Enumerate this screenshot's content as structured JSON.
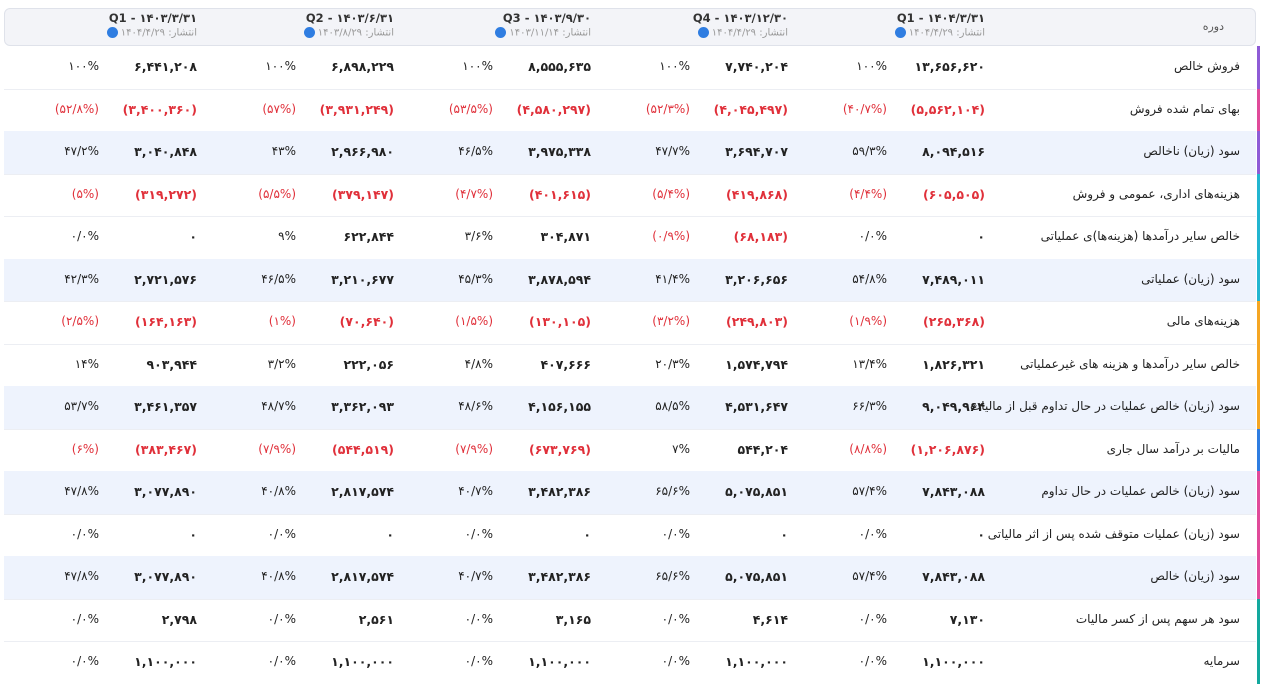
{
  "header": {
    "title": "دوره",
    "periods": [
      {
        "label": "Q1 - ۱۴۰۴/۳/۳۱",
        "published": "انتشار: ۱۴۰۴/۴/۲۹"
      },
      {
        "label": "Q4 - ۱۴۰۳/۱۲/۳۰",
        "published": "انتشار: ۱۴۰۴/۴/۲۹"
      },
      {
        "label": "Q3 - ۱۴۰۳/۹/۳۰",
        "published": "انتشار: ۱۴۰۳/۱۱/۱۴"
      },
      {
        "label": "Q2 - ۱۴۰۳/۶/۳۱",
        "published": "انتشار: ۱۴۰۳/۸/۲۹"
      },
      {
        "label": "Q1 - ۱۴۰۳/۳/۳۱",
        "published": "انتشار: ۱۴۰۴/۴/۲۹"
      }
    ]
  },
  "rows": [
    {
      "label": "فروش خالص",
      "cells": [
        {
          "value": "۱۳,۶۵۶,۶۲۰",
          "percent": "۱۰۰%"
        },
        {
          "value": "۷,۷۴۰,۲۰۴",
          "percent": "۱۰۰%"
        },
        {
          "value": "۸,۵۵۵,۶۳۵",
          "percent": "۱۰۰%"
        },
        {
          "value": "۶,۸۹۸,۲۲۹",
          "percent": "۱۰۰%"
        },
        {
          "value": "۶,۴۴۱,۲۰۸",
          "percent": "۱۰۰%"
        }
      ]
    },
    {
      "label": "بهای تمام شده فروش",
      "cells": [
        {
          "value": "(۵,۵۶۲,۱۰۴)",
          "percent": "(۴۰/۷%)"
        },
        {
          "value": "(۴,۰۴۵,۴۹۷)",
          "percent": "(۵۲/۳%)"
        },
        {
          "value": "(۴,۵۸۰,۲۹۷)",
          "percent": "(۵۳/۵%)"
        },
        {
          "value": "(۳,۹۳۱,۲۴۹)",
          "percent": "(۵۷%)"
        },
        {
          "value": "(۳,۴۰۰,۳۶۰)",
          "percent": "(۵۲/۸%)"
        }
      ]
    },
    {
      "label": "سود (زیان) ناخالص",
      "cells": [
        {
          "value": "۸,۰۹۴,۵۱۶",
          "percent": "۵۹/۳%"
        },
        {
          "value": "۳,۶۹۴,۷۰۷",
          "percent": "۴۷/۷%"
        },
        {
          "value": "۳,۹۷۵,۳۳۸",
          "percent": "۴۶/۵%"
        },
        {
          "value": "۲,۹۶۶,۹۸۰",
          "percent": "۴۳%"
        },
        {
          "value": "۳,۰۴۰,۸۴۸",
          "percent": "۴۷/۲%"
        }
      ]
    },
    {
      "label": "هزینه‌های اداری، عمومی و فروش",
      "cells": [
        {
          "value": "(۶۰۵,۵۰۵)",
          "percent": "(۴/۴%)"
        },
        {
          "value": "(۴۱۹,۸۶۸)",
          "percent": "(۵/۴%)"
        },
        {
          "value": "(۴۰۱,۶۱۵)",
          "percent": "(۴/۷%)"
        },
        {
          "value": "(۳۷۹,۱۴۷)",
          "percent": "(۵/۵%)"
        },
        {
          "value": "(۳۱۹,۲۷۲)",
          "percent": "(۵%)"
        }
      ]
    },
    {
      "label": "خالص سایر درآمدها (هزینه‌ها)ی عملیاتی",
      "cells": [
        {
          "value": "۰",
          "percent": "۰/۰%"
        },
        {
          "value": "(۶۸,۱۸۳)",
          "percent": "(۰/۹%)"
        },
        {
          "value": "۳۰۴,۸۷۱",
          "percent": "۳/۶%"
        },
        {
          "value": "۶۲۲,۸۴۴",
          "percent": "۹%"
        },
        {
          "value": "۰",
          "percent": "۰/۰%"
        }
      ]
    },
    {
      "label": "سود (زیان) عملیاتی",
      "cells": [
        {
          "value": "۷,۴۸۹,۰۱۱",
          "percent": "۵۴/۸%"
        },
        {
          "value": "۳,۲۰۶,۶۵۶",
          "percent": "۴۱/۴%"
        },
        {
          "value": "۳,۸۷۸,۵۹۴",
          "percent": "۴۵/۳%"
        },
        {
          "value": "۳,۲۱۰,۶۷۷",
          "percent": "۴۶/۵%"
        },
        {
          "value": "۲,۷۲۱,۵۷۶",
          "percent": "۴۲/۳%"
        }
      ]
    },
    {
      "label": "هزینه‌های مالی",
      "cells": [
        {
          "value": "(۲۶۵,۳۶۸)",
          "percent": "(۱/۹%)"
        },
        {
          "value": "(۲۴۹,۸۰۳)",
          "percent": "(۳/۲%)"
        },
        {
          "value": "(۱۳۰,۱۰۵)",
          "percent": "(۱/۵%)"
        },
        {
          "value": "(۷۰,۶۴۰)",
          "percent": "(۱%)"
        },
        {
          "value": "(۱۶۴,۱۶۳)",
          "percent": "(۲/۵%)"
        }
      ]
    },
    {
      "label": "خالص سایر درآمدها و هزینه های غیرعملیاتی",
      "cells": [
        {
          "value": "۱,۸۲۶,۳۲۱",
          "percent": "۱۳/۴%"
        },
        {
          "value": "۱,۵۷۴,۷۹۴",
          "percent": "۲۰/۳%"
        },
        {
          "value": "۴۰۷,۶۶۶",
          "percent": "۴/۸%"
        },
        {
          "value": "۲۲۲,۰۵۶",
          "percent": "۳/۲%"
        },
        {
          "value": "۹۰۳,۹۴۴",
          "percent": "۱۴%"
        }
      ]
    },
    {
      "label": "سود (زیان) خالص عملیات در حال تداوم قبل از مالیات",
      "cells": [
        {
          "value": "۹,۰۴۹,۹۶۴",
          "percent": "۶۶/۳%"
        },
        {
          "value": "۴,۵۳۱,۶۴۷",
          "percent": "۵۸/۵%"
        },
        {
          "value": "۴,۱۵۶,۱۵۵",
          "percent": "۴۸/۶%"
        },
        {
          "value": "۳,۳۶۲,۰۹۳",
          "percent": "۴۸/۷%"
        },
        {
          "value": "۳,۴۶۱,۳۵۷",
          "percent": "۵۳/۷%"
        }
      ]
    },
    {
      "label": "مالیات بر درآمد سال جاری",
      "cells": [
        {
          "value": "(۱,۲۰۶,۸۷۶)",
          "percent": "(۸/۸%)"
        },
        {
          "value": "۵۴۴,۲۰۴",
          "percent": "۷%"
        },
        {
          "value": "(۶۷۳,۷۶۹)",
          "percent": "(۷/۹%)"
        },
        {
          "value": "(۵۴۴,۵۱۹)",
          "percent": "(۷/۹%)"
        },
        {
          "value": "(۳۸۳,۴۶۷)",
          "percent": "(۶%)"
        }
      ]
    },
    {
      "label": "سود (زیان) خالص عملیات در حال تداوم",
      "cells": [
        {
          "value": "۷,۸۴۳,۰۸۸",
          "percent": "۵۷/۴%"
        },
        {
          "value": "۵,۰۷۵,۸۵۱",
          "percent": "۶۵/۶%"
        },
        {
          "value": "۳,۴۸۲,۳۸۶",
          "percent": "۴۰/۷%"
        },
        {
          "value": "۲,۸۱۷,۵۷۴",
          "percent": "۴۰/۸%"
        },
        {
          "value": "۳,۰۷۷,۸۹۰",
          "percent": "۴۷/۸%"
        }
      ]
    },
    {
      "label": "سود (زیان) عملیات متوقف شده پس از اثر مالیاتی",
      "cells": [
        {
          "value": "۰",
          "percent": "۰/۰%"
        },
        {
          "value": "۰",
          "percent": "۰/۰%"
        },
        {
          "value": "۰",
          "percent": "۰/۰%"
        },
        {
          "value": "۰",
          "percent": "۰/۰%"
        },
        {
          "value": "۰",
          "percent": "۰/۰%"
        }
      ]
    },
    {
      "label": "سود (زیان) خالص",
      "cells": [
        {
          "value": "۷,۸۴۳,۰۸۸",
          "percent": "۵۷/۴%"
        },
        {
          "value": "۵,۰۷۵,۸۵۱",
          "percent": "۶۵/۶%"
        },
        {
          "value": "۳,۴۸۲,۳۸۶",
          "percent": "۴۰/۷%"
        },
        {
          "value": "۲,۸۱۷,۵۷۴",
          "percent": "۴۰/۸%"
        },
        {
          "value": "۳,۰۷۷,۸۹۰",
          "percent": "۴۷/۸%"
        }
      ]
    },
    {
      "label": "سود هر سهم پس از کسر مالیات",
      "cells": [
        {
          "value": "۷,۱۳۰",
          "percent": "۰/۰%"
        },
        {
          "value": "۴,۶۱۴",
          "percent": "۰/۰%"
        },
        {
          "value": "۳,۱۶۵",
          "percent": "۰/۰%"
        },
        {
          "value": "۲,۵۶۱",
          "percent": "۰/۰%"
        },
        {
          "value": "۲,۷۹۸",
          "percent": "۰/۰%"
        }
      ]
    },
    {
      "label": "سرمایه",
      "cells": [
        {
          "value": "۱,۱۰۰,۰۰۰",
          "percent": "۰/۰%"
        },
        {
          "value": "۱,۱۰۰,۰۰۰",
          "percent": "۰/۰%"
        },
        {
          "value": "۱,۱۰۰,۰۰۰",
          "percent": "۰/۰%"
        },
        {
          "value": "۱,۱۰۰,۰۰۰",
          "percent": "۰/۰%"
        },
        {
          "value": "۱,۱۰۰,۰۰۰",
          "percent": "۰/۰%"
        }
      ]
    }
  ]
}
